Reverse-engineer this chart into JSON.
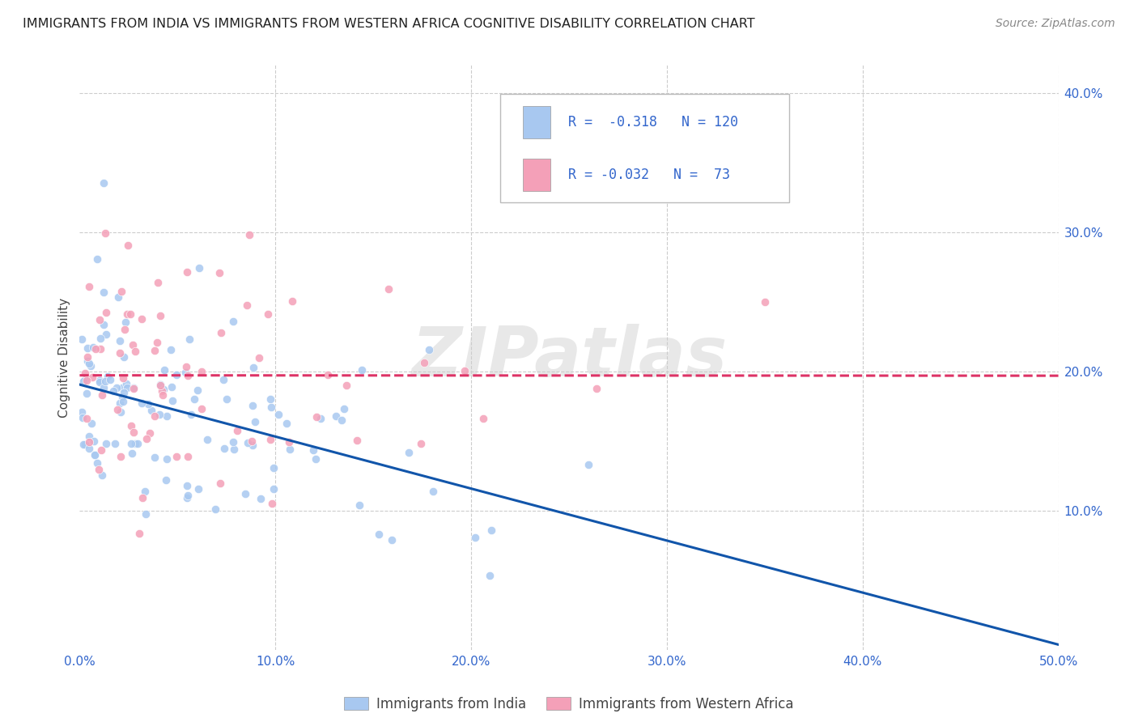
{
  "title": "IMMIGRANTS FROM INDIA VS IMMIGRANTS FROM WESTERN AFRICA COGNITIVE DISABILITY CORRELATION CHART",
  "source": "Source: ZipAtlas.com",
  "ylabel": "Cognitive Disability",
  "xlim": [
    0.0,
    0.5
  ],
  "ylim": [
    0.0,
    0.42
  ],
  "xticks": [
    0.0,
    0.1,
    0.2,
    0.3,
    0.4,
    0.5
  ],
  "xticklabels": [
    "0.0%",
    "10.0%",
    "20.0%",
    "30.0%",
    "40.0%",
    "50.0%"
  ],
  "yticks_right": [
    0.1,
    0.2,
    0.3,
    0.4
  ],
  "yticklabels_right": [
    "10.0%",
    "20.0%",
    "30.0%",
    "40.0%"
  ],
  "legend_india": "Immigrants from India",
  "legend_africa": "Immigrants from Western Africa",
  "R_india": -0.318,
  "N_india": 120,
  "R_africa": -0.032,
  "N_africa": 73,
  "color_india": "#a8c8f0",
  "color_africa": "#f4a0b8",
  "trendline_india_color": "#1155aa",
  "trendline_africa_color": "#dd3366",
  "background_color": "#ffffff",
  "grid_color": "#cccccc",
  "watermark": "ZIPatlas",
  "tick_color": "#3366cc",
  "title_color": "#222222",
  "source_color": "#888888",
  "ylabel_color": "#444444"
}
